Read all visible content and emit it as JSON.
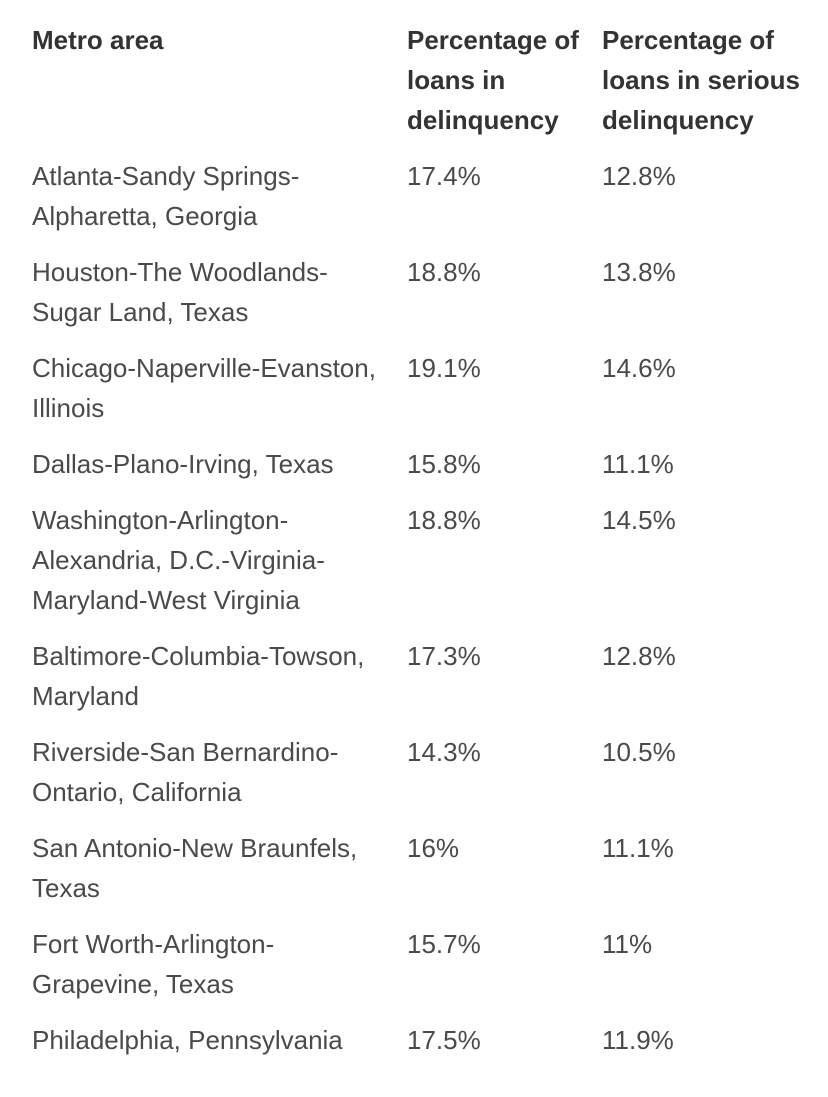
{
  "table": {
    "headers": [
      "Metro area",
      "Percentage of loans in delinquency",
      "Percentage of loans in serious delinquency"
    ],
    "rows": [
      [
        "Atlanta-Sandy Springs-Alpharetta, Georgia",
        "17.4%",
        "12.8%"
      ],
      [
        "Houston-The Woodlands-Sugar Land, Texas",
        "18.8%",
        "13.8%"
      ],
      [
        "Chicago-Naperville-Evanston, Illinois",
        "19.1%",
        "14.6%"
      ],
      [
        "Dallas-Plano-Irving, Texas",
        "15.8%",
        "11.1%"
      ],
      [
        "Washington-Arlington-Alexandria, D.C.-Virginia-Maryland-West Virginia",
        "18.8%",
        "14.5%"
      ],
      [
        "Baltimore-Columbia-Towson, Maryland",
        "17.3%",
        "12.8%"
      ],
      [
        "Riverside-San Bernardino-Ontario, California",
        "14.3%",
        "10.5%"
      ],
      [
        "San Antonio-New Braunfels, Texas",
        "16%",
        "11.1%"
      ],
      [
        "Fort Worth-Arlington-Grapevine, Texas",
        "15.7%",
        "11%"
      ],
      [
        "Philadelphia, Pennsylvania",
        "17.5%",
        "11.9%"
      ]
    ]
  }
}
